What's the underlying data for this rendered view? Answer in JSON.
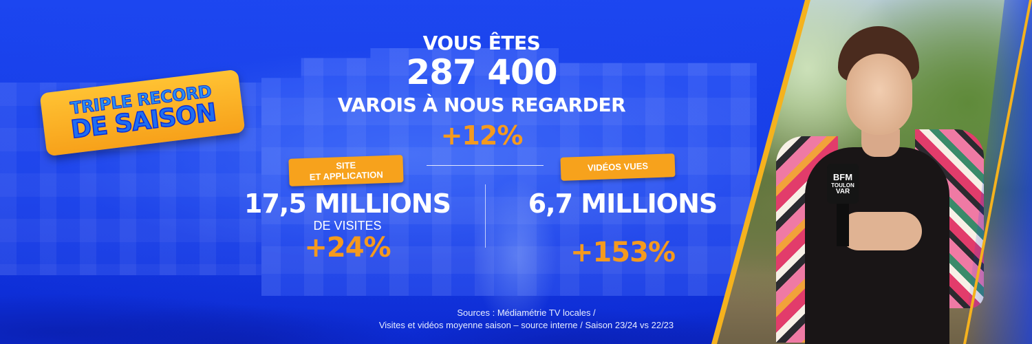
{
  "badge": {
    "line1": "TRIPLE RECORD",
    "line2": "DE SAISON"
  },
  "headline": {
    "line1": "VOUS ÊTES",
    "number": "287 400",
    "line3": "VAROIS À NOUS REGARDER",
    "change": "+12%"
  },
  "left_stat": {
    "tag": "SITE\nET APPLICATION",
    "tag_line1": "SITE",
    "tag_line2": "ET APPLICATION",
    "value": "17,5 MILLIONS",
    "subtitle": "DE VISITES",
    "change": "+24%"
  },
  "right_stat": {
    "tag": "VIDÉOS VUES",
    "value": "6,7 MILLIONS",
    "change": "+153%"
  },
  "sources": {
    "line1": "Sources : Médiamétrie TV locales /",
    "line2": "Visites et vidéos moyenne saison – source interne / Saison 23/24 vs 22/23"
  },
  "microphone": {
    "line1": "BFM",
    "line2": "TOULON",
    "line3": "VAR"
  },
  "colors": {
    "background_blue": "#1238e4",
    "accent_orange": "#f7a21c",
    "percent_orange": "#f59a1e",
    "badge_text_blue": "#1e6ef0"
  }
}
